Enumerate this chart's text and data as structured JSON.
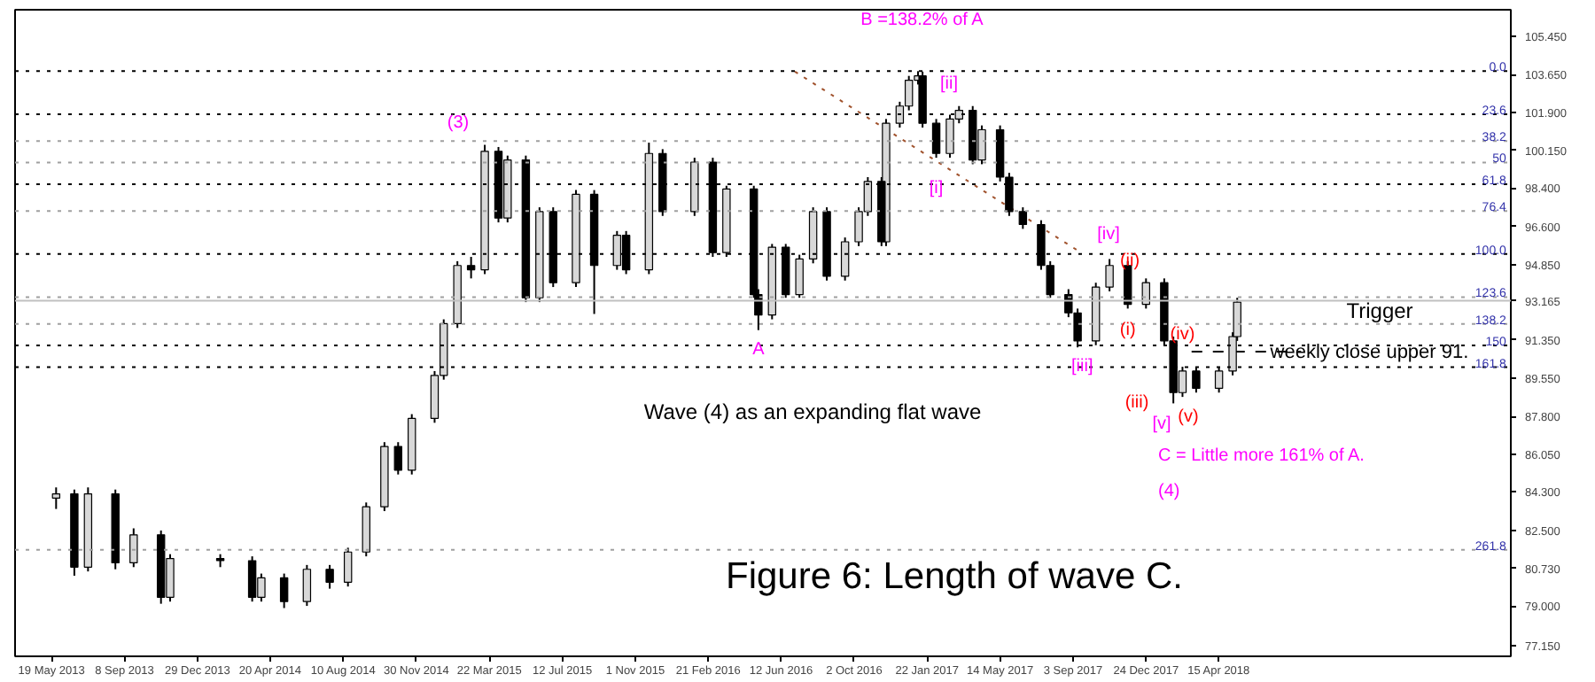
{
  "chart_data": {
    "type": "candlestick",
    "title": "Figure 6: Length of wave C.",
    "x": [
      "2013-05-26",
      "2013-06-23",
      "2013-07-14",
      "2013-08-25",
      "2013-09-22",
      "2013-11-03",
      "2013-11-17",
      "2014-02-02",
      "2014-03-23",
      "2014-04-06",
      "2014-05-11",
      "2014-06-15",
      "2014-07-20",
      "2014-08-17",
      "2014-09-14",
      "2014-10-12",
      "2014-11-02",
      "2014-11-23",
      "2014-12-28",
      "2015-01-11",
      "2015-02-01",
      "2015-02-22",
      "2015-03-15",
      "2015-04-05",
      "2015-04-19",
      "2015-05-17",
      "2015-06-07",
      "2015-06-28",
      "2015-08-02",
      "2015-08-30",
      "2015-10-04",
      "2015-10-18",
      "2015-11-22",
      "2015-12-13",
      "2016-01-31",
      "2016-02-28",
      "2016-03-20",
      "2016-05-01",
      "2016-05-08",
      "2016-05-29",
      "2016-06-19",
      "2016-07-10",
      "2016-07-31",
      "2016-08-21",
      "2016-09-18",
      "2016-10-09",
      "2016-10-23",
      "2016-11-13",
      "2016-11-20",
      "2016-12-11",
      "2016-12-25",
      "2017-01-08",
      "2017-01-15",
      "2017-02-05",
      "2017-02-26",
      "2017-03-12",
      "2017-04-02",
      "2017-04-16",
      "2017-05-14",
      "2017-05-28",
      "2017-06-18",
      "2017-07-16",
      "2017-07-30",
      "2017-08-27",
      "2017-09-10",
      "2017-10-08",
      "2017-10-29",
      "2017-11-26",
      "2017-12-24",
      "2018-01-21",
      "2018-02-04",
      "2018-02-18",
      "2018-03-11",
      "2018-04-15",
      "2018-05-06",
      "2018-05-13"
    ],
    "ohlc": [
      [
        84.0,
        84.5,
        83.5,
        84.2
      ],
      [
        84.2,
        84.4,
        80.4,
        80.8
      ],
      [
        80.8,
        84.5,
        80.6,
        84.2
      ],
      [
        84.2,
        84.4,
        80.7,
        81.0
      ],
      [
        81.0,
        82.6,
        80.8,
        82.3
      ],
      [
        82.3,
        82.5,
        79.1,
        79.4
      ],
      [
        79.4,
        81.4,
        79.2,
        81.2
      ],
      [
        81.2,
        81.4,
        80.8,
        81.1
      ],
      [
        81.1,
        81.3,
        79.2,
        79.4
      ],
      [
        79.4,
        80.5,
        79.2,
        80.3
      ],
      [
        80.3,
        80.5,
        78.9,
        79.2
      ],
      [
        79.2,
        80.9,
        79.0,
        80.7
      ],
      [
        80.7,
        80.9,
        79.8,
        80.1
      ],
      [
        80.1,
        81.7,
        79.9,
        81.5
      ],
      [
        81.5,
        83.8,
        81.3,
        83.6
      ],
      [
        83.6,
        86.6,
        83.4,
        86.4
      ],
      [
        86.4,
        86.6,
        85.1,
        85.3
      ],
      [
        85.3,
        87.9,
        85.1,
        87.7
      ],
      [
        87.7,
        89.9,
        87.5,
        89.7
      ],
      [
        89.7,
        92.3,
        89.5,
        92.1
      ],
      [
        92.1,
        95.0,
        91.9,
        94.8
      ],
      [
        94.8,
        95.2,
        94.2,
        94.6
      ],
      [
        94.6,
        100.4,
        94.4,
        100.1
      ],
      [
        100.1,
        100.3,
        96.8,
        97.0
      ],
      [
        97.0,
        99.9,
        96.8,
        99.7
      ],
      [
        99.7,
        99.9,
        93.1,
        93.3
      ],
      [
        93.3,
        97.5,
        93.1,
        97.3
      ],
      [
        97.3,
        97.5,
        93.8,
        94.0
      ],
      [
        94.0,
        98.3,
        93.8,
        98.1
      ],
      [
        98.1,
        98.3,
        92.55,
        94.8
      ],
      [
        94.8,
        96.4,
        94.6,
        96.2
      ],
      [
        96.2,
        96.4,
        94.4,
        94.6
      ],
      [
        94.6,
        100.5,
        94.4,
        100.0
      ],
      [
        100.0,
        100.2,
        97.1,
        97.3
      ],
      [
        97.3,
        99.8,
        97.1,
        99.6
      ],
      [
        99.6,
        99.8,
        95.2,
        95.4
      ],
      [
        95.4,
        98.5,
        95.2,
        98.35
      ],
      [
        98.35,
        98.5,
        93.3,
        93.45
      ],
      [
        93.45,
        93.7,
        91.8,
        92.5
      ],
      [
        92.5,
        95.8,
        92.3,
        95.65
      ],
      [
        95.65,
        95.8,
        93.3,
        93.45
      ],
      [
        93.45,
        95.3,
        93.3,
        95.1
      ],
      [
        95.1,
        97.5,
        94.9,
        97.3
      ],
      [
        97.3,
        97.5,
        94.1,
        94.3
      ],
      [
        94.3,
        96.1,
        94.1,
        95.9
      ],
      [
        95.9,
        97.5,
        95.7,
        97.3
      ],
      [
        97.3,
        98.9,
        97.1,
        98.7
      ],
      [
        98.7,
        98.9,
        95.7,
        95.9
      ],
      [
        95.9,
        101.6,
        95.7,
        101.4
      ],
      [
        101.4,
        102.4,
        101.2,
        102.2
      ],
      [
        102.2,
        103.6,
        102.0,
        103.4
      ],
      [
        103.4,
        103.82,
        103.2,
        103.6
      ],
      [
        103.6,
        103.8,
        101.2,
        101.4
      ],
      [
        101.4,
        101.6,
        99.8,
        100.0
      ],
      [
        100.0,
        101.8,
        99.8,
        101.6
      ],
      [
        101.6,
        102.2,
        101.4,
        102.0
      ],
      [
        102.0,
        102.2,
        99.5,
        99.7
      ],
      [
        99.7,
        101.3,
        99.5,
        101.1
      ],
      [
        101.1,
        101.3,
        98.7,
        98.9
      ],
      [
        98.9,
        99.1,
        97.1,
        97.3
      ],
      [
        97.3,
        97.5,
        96.5,
        96.7
      ],
      [
        96.7,
        96.9,
        94.6,
        94.8
      ],
      [
        94.8,
        95.0,
        93.3,
        93.45
      ],
      [
        93.45,
        93.7,
        92.4,
        92.6
      ],
      [
        92.6,
        92.8,
        91.0,
        91.3
      ],
      [
        91.3,
        94.0,
        91.1,
        93.8
      ],
      [
        93.8,
        95.1,
        93.6,
        94.8
      ],
      [
        94.8,
        95.0,
        92.8,
        93.0
      ],
      [
        93.0,
        94.2,
        92.8,
        94.0
      ],
      [
        94.0,
        94.2,
        91.1,
        91.3
      ],
      [
        91.3,
        91.5,
        88.4,
        88.9
      ],
      [
        88.9,
        90.1,
        88.7,
        89.9
      ],
      [
        89.9,
        90.1,
        88.9,
        89.1
      ],
      [
        89.1,
        90.1,
        88.9,
        89.9
      ],
      [
        89.9,
        91.7,
        89.7,
        91.5
      ],
      [
        91.5,
        93.3,
        91.3,
        93.1
      ]
    ],
    "series": [
      {
        "type": "line",
        "color": "#a0522d",
        "line_style": "dotted",
        "x": [
          "2016-07-03",
          "2017-09-10"
        ],
        "values": [
          103.8,
          95.5
        ]
      },
      {
        "type": "line",
        "color": "#000000",
        "line_style": "dashed",
        "x": [
          "2018-03-04",
          "2018-08-19"
        ],
        "values": [
          90.8,
          90.8
        ]
      }
    ],
    "xlim": [
      "2013-03-24",
      "2019-07-07"
    ],
    "ylim": [
      76.66,
      106.67
    ],
    "xticks": [
      {
        "value": "2013-05-19",
        "label": "19 May 2013"
      },
      {
        "value": "2013-09-08",
        "label": "8 Sep 2013"
      },
      {
        "value": "2013-12-29",
        "label": "29 Dec 2013"
      },
      {
        "value": "2014-04-20",
        "label": "20 Apr 2014"
      },
      {
        "value": "2014-08-10",
        "label": "10 Aug 2014"
      },
      {
        "value": "2014-11-30",
        "label": "30 Nov 2014"
      },
      {
        "value": "2015-03-22",
        "label": "22 Mar 2015"
      },
      {
        "value": "2015-07-12",
        "label": "12 Jul 2015"
      },
      {
        "value": "2015-11-01",
        "label": "1 Nov 2015"
      },
      {
        "value": "2016-02-21",
        "label": "21 Feb 2016"
      },
      {
        "value": "2016-06-12",
        "label": "12 Jun 2016"
      },
      {
        "value": "2016-10-02",
        "label": "2 Oct 2016"
      },
      {
        "value": "2017-01-22",
        "label": "22 Jan 2017"
      },
      {
        "value": "2017-05-14",
        "label": "14 May 2017"
      },
      {
        "value": "2017-09-03",
        "label": "3 Sep 2017"
      },
      {
        "value": "2017-12-24",
        "label": "24 Dec 2017"
      },
      {
        "value": "2018-04-15",
        "label": "15 Apr 2018"
      }
    ],
    "yticks": [
      {
        "value": 105.45,
        "label": "105.450"
      },
      {
        "value": 103.65,
        "label": "103.650"
      },
      {
        "value": 101.9,
        "label": "101.900"
      },
      {
        "value": 100.15,
        "label": "100.150"
      },
      {
        "value": 98.4,
        "label": "98.400"
      },
      {
        "value": 96.6,
        "label": "96.600"
      },
      {
        "value": 94.85,
        "label": "94.850"
      },
      {
        "value": 93.165,
        "label": "93.165"
      },
      {
        "value": 91.35,
        "label": "91.350"
      },
      {
        "value": 89.55,
        "label": "89.550"
      },
      {
        "value": 87.8,
        "label": "87.800"
      },
      {
        "value": 86.05,
        "label": "86.050"
      },
      {
        "value": 84.3,
        "label": "84.300"
      },
      {
        "value": 82.5,
        "label": "82.500"
      },
      {
        "value": 80.73,
        "label": "80.730"
      },
      {
        "value": 79.0,
        "label": "79.000"
      },
      {
        "value": 77.15,
        "label": "77.150"
      }
    ],
    "ref_lines": [
      {
        "axis": "y",
        "value": 93.165,
        "color": "#c0c0c0",
        "line_style": "solid"
      },
      {
        "axis": "y",
        "value": 103.82,
        "color": "#000000",
        "line_style": "dotted"
      },
      {
        "axis": "y",
        "value": 101.82,
        "color": "#000000",
        "line_style": "dotted"
      },
      {
        "axis": "y",
        "value": 100.58,
        "color": "#a0a0a0",
        "line_style": "dotted"
      },
      {
        "axis": "y",
        "value": 99.58,
        "color": "#a0a0a0",
        "line_style": "dotted"
      },
      {
        "axis": "y",
        "value": 98.57,
        "color": "#000000",
        "line_style": "dotted"
      },
      {
        "axis": "y",
        "value": 97.33,
        "color": "#a0a0a0",
        "line_style": "dotted"
      },
      {
        "axis": "y",
        "value": 95.33,
        "color": "#000000",
        "line_style": "dotted"
      },
      {
        "axis": "y",
        "value": 93.33,
        "color": "#a0a0a0",
        "line_style": "dotted"
      },
      {
        "axis": "y",
        "value": 92.09,
        "color": "#a0a0a0",
        "line_style": "dotted"
      },
      {
        "axis": "y",
        "value": 91.09,
        "color": "#000000",
        "line_style": "dotted"
      },
      {
        "axis": "y",
        "value": 90.08,
        "color": "#000000",
        "line_style": "dotted"
      },
      {
        "axis": "y",
        "value": 81.6,
        "color": "#a0a0a0",
        "line_style": "dotted"
      }
    ],
    "annotations": [
      "(3)",
      {
        "text": "A",
        "x": "2016-05-08",
        "y": 90.9
      },
      "B =138.2% of A",
      {
        "text": "[i]",
        "x": "2017-02-05",
        "y": 98.35
      },
      "[ii]",
      {
        "text": "[iii]",
        "x": "2017-09-17",
        "y": 90.1
      },
      "[iv]",
      "[v]",
      {
        "text": "(i)",
        "x": "2017-11-26",
        "y": 91.8
      },
      "(ii)",
      "(iii)",
      {
        "text": "(iv)",
        "x": "2018-02-18",
        "y": 91.6
      },
      "(v)",
      "C = Little more 161% of A.",
      "(4)",
      "Trigger",
      {
        "text": "weekly close upper 91.",
        "x": "2018-12-02",
        "y": 90.75
      },
      "Wave (4) as an expanding flat wave",
      {
        "text": "0.0",
        "x": "2019-06-30",
        "y": 103.82
      },
      {
        "text": "23.6",
        "x": "2019-06-30",
        "y": 101.82
      },
      {
        "text": "38.2",
        "x": "2019-06-30",
        "y": 100.58
      },
      {
        "text": "50",
        "x": "2019-06-30",
        "y": 99.58
      },
      {
        "text": "61.8",
        "x": "2019-06-30",
        "y": 98.57
      },
      {
        "text": "76.4",
        "x": "2019-06-30",
        "y": 97.33
      },
      {
        "text": "100.0",
        "x": "2019-06-30",
        "y": 95.33
      },
      {
        "text": "123.6",
        "x": "2019-06-30",
        "y": 93.33
      },
      {
        "text": "138.2",
        "x": "2019-06-30",
        "y": 92.09
      },
      {
        "text": "150",
        "x": "2019-06-30",
        "y": 91.09
      },
      {
        "text": "161.8",
        "x": "2019-06-30",
        "y": 90.08
      },
      {
        "text": "261.8",
        "x": "2019-06-30",
        "y": 81.6
      }
    ]
  }
}
